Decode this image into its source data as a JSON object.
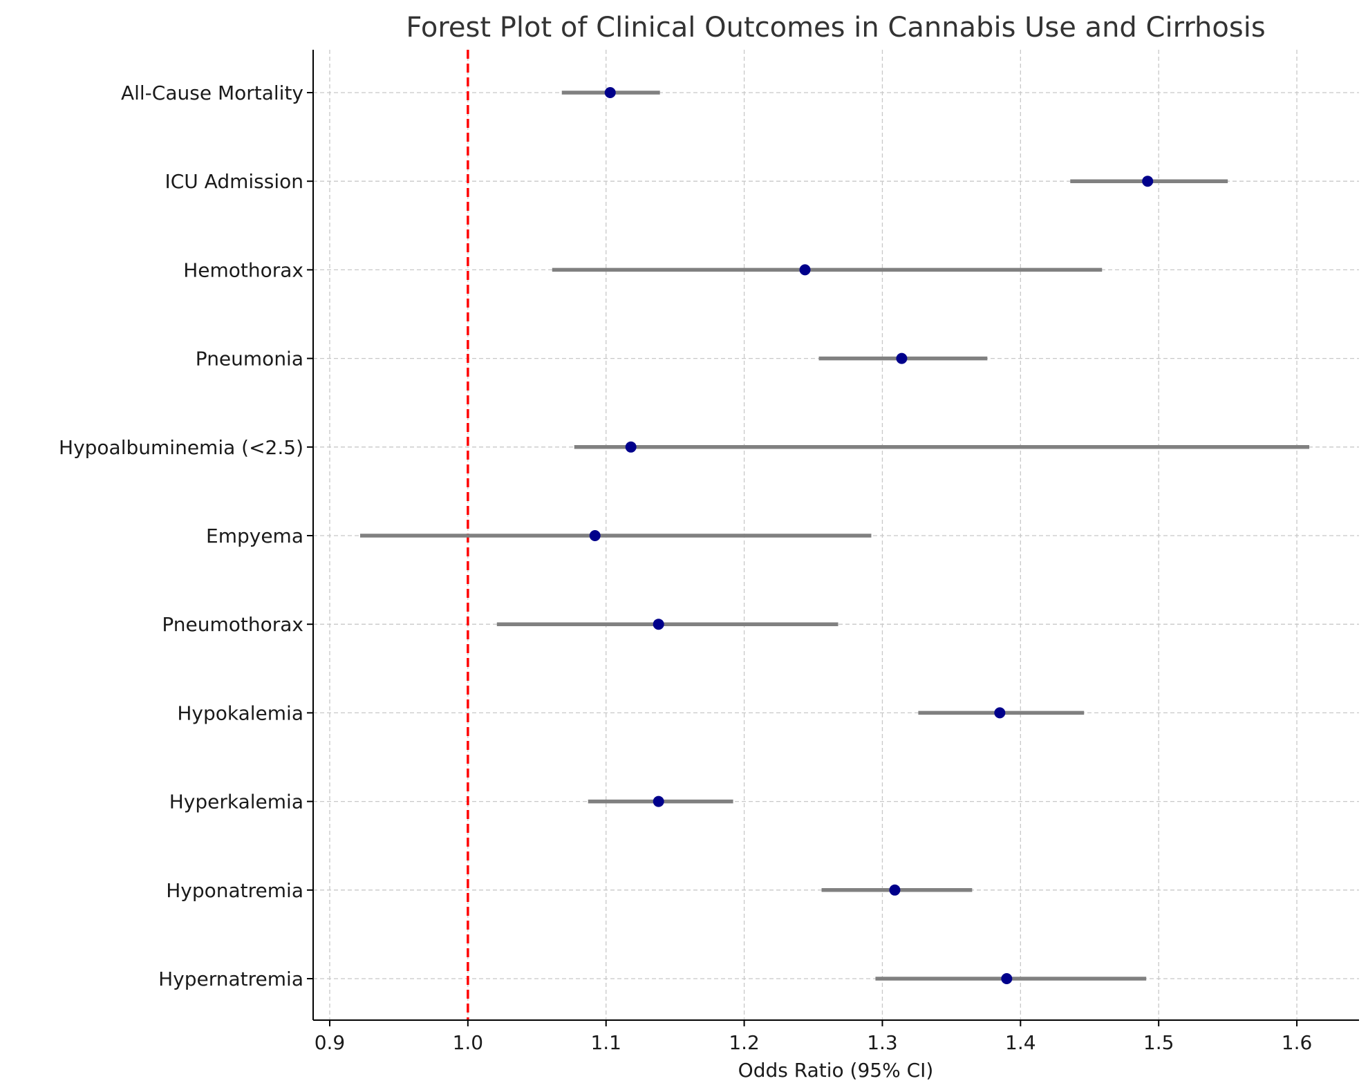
{
  "chart_data": {
    "type": "forest",
    "title": "Forest Plot of Clinical Outcomes in Cannabis Use and Cirrhosis",
    "xlabel": "Odds Ratio (95% CI)",
    "ylabel": "",
    "xlim": [
      0.888,
      1.645
    ],
    "xticks": [
      "0.9",
      "1.0",
      "1.1",
      "1.2",
      "1.3",
      "1.4",
      "1.5",
      "1.6"
    ],
    "xtick_values": [
      0.9,
      1.0,
      1.1,
      1.2,
      1.3,
      1.4,
      1.5,
      1.6
    ],
    "reference_line": {
      "x": 1.0,
      "color": "#ff0000",
      "style": "dashed"
    },
    "grid": true,
    "point_color": "#00008b",
    "ci_color": "#808080",
    "outcomes": [
      {
        "label": "All-Cause Mortality",
        "or": 1.103,
        "lower": 1.068,
        "upper": 1.139
      },
      {
        "label": "ICU Admission",
        "or": 1.492,
        "lower": 1.436,
        "upper": 1.55
      },
      {
        "label": "Hemothorax",
        "or": 1.244,
        "lower": 1.061,
        "upper": 1.459
      },
      {
        "label": "Pneumonia",
        "or": 1.314,
        "lower": 1.254,
        "upper": 1.376
      },
      {
        "label": "Hypoalbuminemia (<2.5)",
        "or": 1.118,
        "lower": 1.077,
        "upper": 1.609
      },
      {
        "label": "Empyema",
        "or": 1.092,
        "lower": 0.922,
        "upper": 1.292
      },
      {
        "label": "Pneumothorax",
        "or": 1.138,
        "lower": 1.021,
        "upper": 1.268
      },
      {
        "label": "Hypokalemia",
        "or": 1.385,
        "lower": 1.326,
        "upper": 1.446
      },
      {
        "label": "Hyperkalemia",
        "or": 1.138,
        "lower": 1.087,
        "upper": 1.192
      },
      {
        "label": "Hyponatremia",
        "or": 1.309,
        "lower": 1.256,
        "upper": 1.365
      },
      {
        "label": "Hypernatremia",
        "or": 1.39,
        "lower": 1.295,
        "upper": 1.491
      }
    ]
  }
}
